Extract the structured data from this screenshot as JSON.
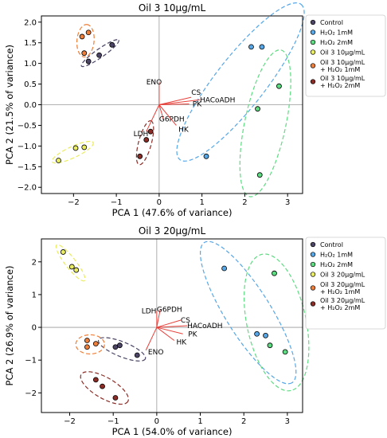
{
  "chart_data": [
    {
      "type": "scatter",
      "title": "Oil 3 10µg/mL",
      "xlabel": "PCA 1 (47.6% of variance)",
      "ylabel": "PCA 2 (21.5% of variance)",
      "xlim": [
        -2.75,
        3.35
      ],
      "ylim": [
        -2.15,
        2.15
      ],
      "xticks": [
        -2,
        -1,
        0,
        1,
        2,
        3
      ],
      "yticks": [
        -2.0,
        -1.5,
        -1.0,
        -0.5,
        0.0,
        0.5,
        1.0,
        1.5,
        2.0
      ],
      "xtick_labels": [
        "−2",
        "−1",
        "0",
        "1",
        "2",
        "3"
      ],
      "ytick_labels": [
        "−2.0",
        "−1.5",
        "−1.0",
        "−0.5",
        "0.0",
        "0.5",
        "1.0",
        "1.5",
        "2.0"
      ],
      "legend_position": "right-outside",
      "series": [
        {
          "name": "Control",
          "color": "#4d4565",
          "points": [
            [
              -1.65,
              1.05
            ],
            [
              -1.4,
              1.2
            ],
            [
              -1.1,
              1.45
            ]
          ],
          "ellipse": {
            "cx": -1.38,
            "cy": 1.25,
            "rx": 0.53,
            "ry": 0.1,
            "angle_deg": 35
          }
        },
        {
          "name": "H₂O₂ 1mM",
          "color": "#56a7e8",
          "points": [
            [
              2.15,
              1.4
            ],
            [
              2.4,
              1.4
            ],
            [
              1.1,
              -1.25
            ]
          ],
          "ellipse": {
            "cx": 1.9,
            "cy": 0.55,
            "rx": 2.3,
            "ry": 0.58,
            "angle_deg": 52
          }
        },
        {
          "name": "H₂O₂ 2mM",
          "color": "#5edc82",
          "points": [
            [
              2.8,
              0.45
            ],
            [
              2.3,
              -0.1
            ],
            [
              2.35,
              -1.7
            ]
          ],
          "ellipse": {
            "cx": 2.48,
            "cy": -0.45,
            "rx": 1.75,
            "ry": 0.48,
            "angle_deg": 78
          }
        },
        {
          "name": "Oil 3 10µg/mL",
          "color": "#e9ec5e",
          "points": [
            [
              -2.35,
              -1.35
            ],
            [
              -1.95,
              -1.05
            ],
            [
              -1.75,
              -1.03
            ]
          ],
          "ellipse": {
            "cx": -2.02,
            "cy": -1.15,
            "rx": 0.53,
            "ry": 0.13,
            "angle_deg": 25
          }
        },
        {
          "name": "Oil 3 10µg/mL + H₂O₂ 1mM",
          "color": "#ee7f3a",
          "points": [
            [
              -1.75,
              1.25
            ],
            [
              -1.8,
              1.65
            ],
            [
              -1.65,
              1.75
            ]
          ],
          "ellipse": {
            "cx": -1.72,
            "cy": 1.55,
            "rx": 0.38,
            "ry": 0.2,
            "angle_deg": 85
          }
        },
        {
          "name": "Oil 3 10µg/mL + H₂O₂ 2mM",
          "color": "#8b2c26",
          "points": [
            [
              -0.2,
              -0.65
            ],
            [
              -0.3,
              -0.85
            ],
            [
              -0.45,
              -1.25
            ]
          ],
          "ellipse": {
            "cx": -0.33,
            "cy": -0.92,
            "rx": 0.53,
            "ry": 0.15,
            "angle_deg": 75
          }
        }
      ],
      "vectors": [
        {
          "label": "ENO",
          "x": 0.0,
          "y": 0.55,
          "lx": -0.3,
          "ly": 0.55
        },
        {
          "label": "CS",
          "x": 0.75,
          "y": 0.18,
          "lx": 0.75,
          "ly": 0.3
        },
        {
          "label": "HACoADH",
          "x": 0.95,
          "y": 0.12,
          "lx": 0.95,
          "ly": 0.12
        },
        {
          "label": "PK",
          "x": 0.7,
          "y": 0.02,
          "lx": 0.78,
          "ly": 0.02
        },
        {
          "label": "G6PDH",
          "x": 0.1,
          "y": -0.35,
          "lx": 0.0,
          "ly": -0.35
        },
        {
          "label": "HK",
          "x": 0.4,
          "y": -0.5,
          "lx": 0.45,
          "ly": -0.6
        },
        {
          "label": "LDH",
          "x": -0.3,
          "y": -0.65,
          "lx": -0.6,
          "ly": -0.7
        }
      ]
    },
    {
      "type": "scatter",
      "title": "Oil 3 20µg/mL",
      "xlabel": "PCA 1 (54.0% of variance)",
      "ylabel": "PCA 2 (26.9% of variance)",
      "xlim": [
        -2.65,
        3.35
      ],
      "ylim": [
        -2.6,
        2.7
      ],
      "xticks": [
        -2,
        -1,
        0,
        1,
        2,
        3
      ],
      "yticks": [
        -2,
        -1,
        0,
        1,
        2
      ],
      "xtick_labels": [
        "−2",
        "−1",
        "0",
        "1",
        "2",
        "3"
      ],
      "ytick_labels": [
        "−2",
        "−1",
        "0",
        "1",
        "2"
      ],
      "legend_position": "right-outside",
      "series": [
        {
          "name": "Control",
          "color": "#4d4565",
          "points": [
            [
              -0.95,
              -0.6
            ],
            [
              -0.85,
              -0.55
            ],
            [
              -0.45,
              -0.85
            ]
          ],
          "ellipse": {
            "cx": -0.8,
            "cy": -0.67,
            "rx": 0.58,
            "ry": 0.17,
            "angle_deg": -22
          }
        },
        {
          "name": "H₂O₂ 1mM",
          "color": "#56a7e8",
          "points": [
            [
              1.55,
              1.8
            ],
            [
              2.3,
              -0.2
            ],
            [
              2.5,
              -0.25
            ]
          ],
          "ellipse": {
            "cx": 2.1,
            "cy": 0.45,
            "rx": 1.9,
            "ry": 0.52,
            "angle_deg": -58
          }
        },
        {
          "name": "H₂O₂ 2mM",
          "color": "#5edc82",
          "points": [
            [
              2.7,
              1.65
            ],
            [
              2.6,
              -0.55
            ],
            [
              2.95,
              -0.75
            ]
          ],
          "ellipse": {
            "cx": 2.75,
            "cy": 0.15,
            "rx": 1.6,
            "ry": 0.68,
            "angle_deg": -78
          }
        },
        {
          "name": "Oil 3 20µg/mL",
          "color": "#e9ec5e",
          "points": [
            [
              -2.15,
              2.3
            ],
            [
              -1.95,
              1.85
            ],
            [
              -1.85,
              1.75
            ]
          ],
          "ellipse": {
            "cx": -1.98,
            "cy": 1.97,
            "rx": 0.52,
            "ry": 0.12,
            "angle_deg": -52
          }
        },
        {
          "name": "Oil 3 20µg/mL + H₂O₂ 1mM",
          "color": "#ee7f3a",
          "points": [
            [
              -1.6,
              -0.4
            ],
            [
              -1.6,
              -0.6
            ],
            [
              -1.4,
              -0.5
            ]
          ],
          "ellipse": {
            "cx": -1.53,
            "cy": -0.52,
            "rx": 0.33,
            "ry": 0.22,
            "angle_deg": 0
          }
        },
        {
          "name": "Oil 3 20µg/mL + H₂O₂ 2mM",
          "color": "#8b2c26",
          "points": [
            [
              -1.4,
              -1.6
            ],
            [
              -1.25,
              -1.8
            ],
            [
              -0.95,
              -2.15
            ]
          ],
          "ellipse": {
            "cx": -1.2,
            "cy": -1.85,
            "rx": 0.62,
            "ry": 0.24,
            "angle_deg": -30
          }
        }
      ],
      "vectors": [
        {
          "label": "LDH",
          "x": 0.0,
          "y": 0.5,
          "lx": -0.35,
          "ly": 0.5
        },
        {
          "label": "G6PDH",
          "x": 0.08,
          "y": 0.55,
          "lx": 0.0,
          "ly": 0.55
        },
        {
          "label": "CS",
          "x": 0.55,
          "y": 0.22,
          "lx": 0.55,
          "ly": 0.22
        },
        {
          "label": "HACoADH",
          "x": 0.7,
          "y": 0.05,
          "lx": 0.7,
          "ly": 0.05
        },
        {
          "label": "PK",
          "x": 0.6,
          "y": -0.2,
          "lx": 0.72,
          "ly": -0.2
        },
        {
          "label": "HK",
          "x": 0.4,
          "y": -0.4,
          "lx": 0.45,
          "ly": -0.45
        },
        {
          "label": "ENO",
          "x": -0.25,
          "y": -0.7,
          "lx": -0.2,
          "ly": -0.75
        }
      ]
    }
  ]
}
